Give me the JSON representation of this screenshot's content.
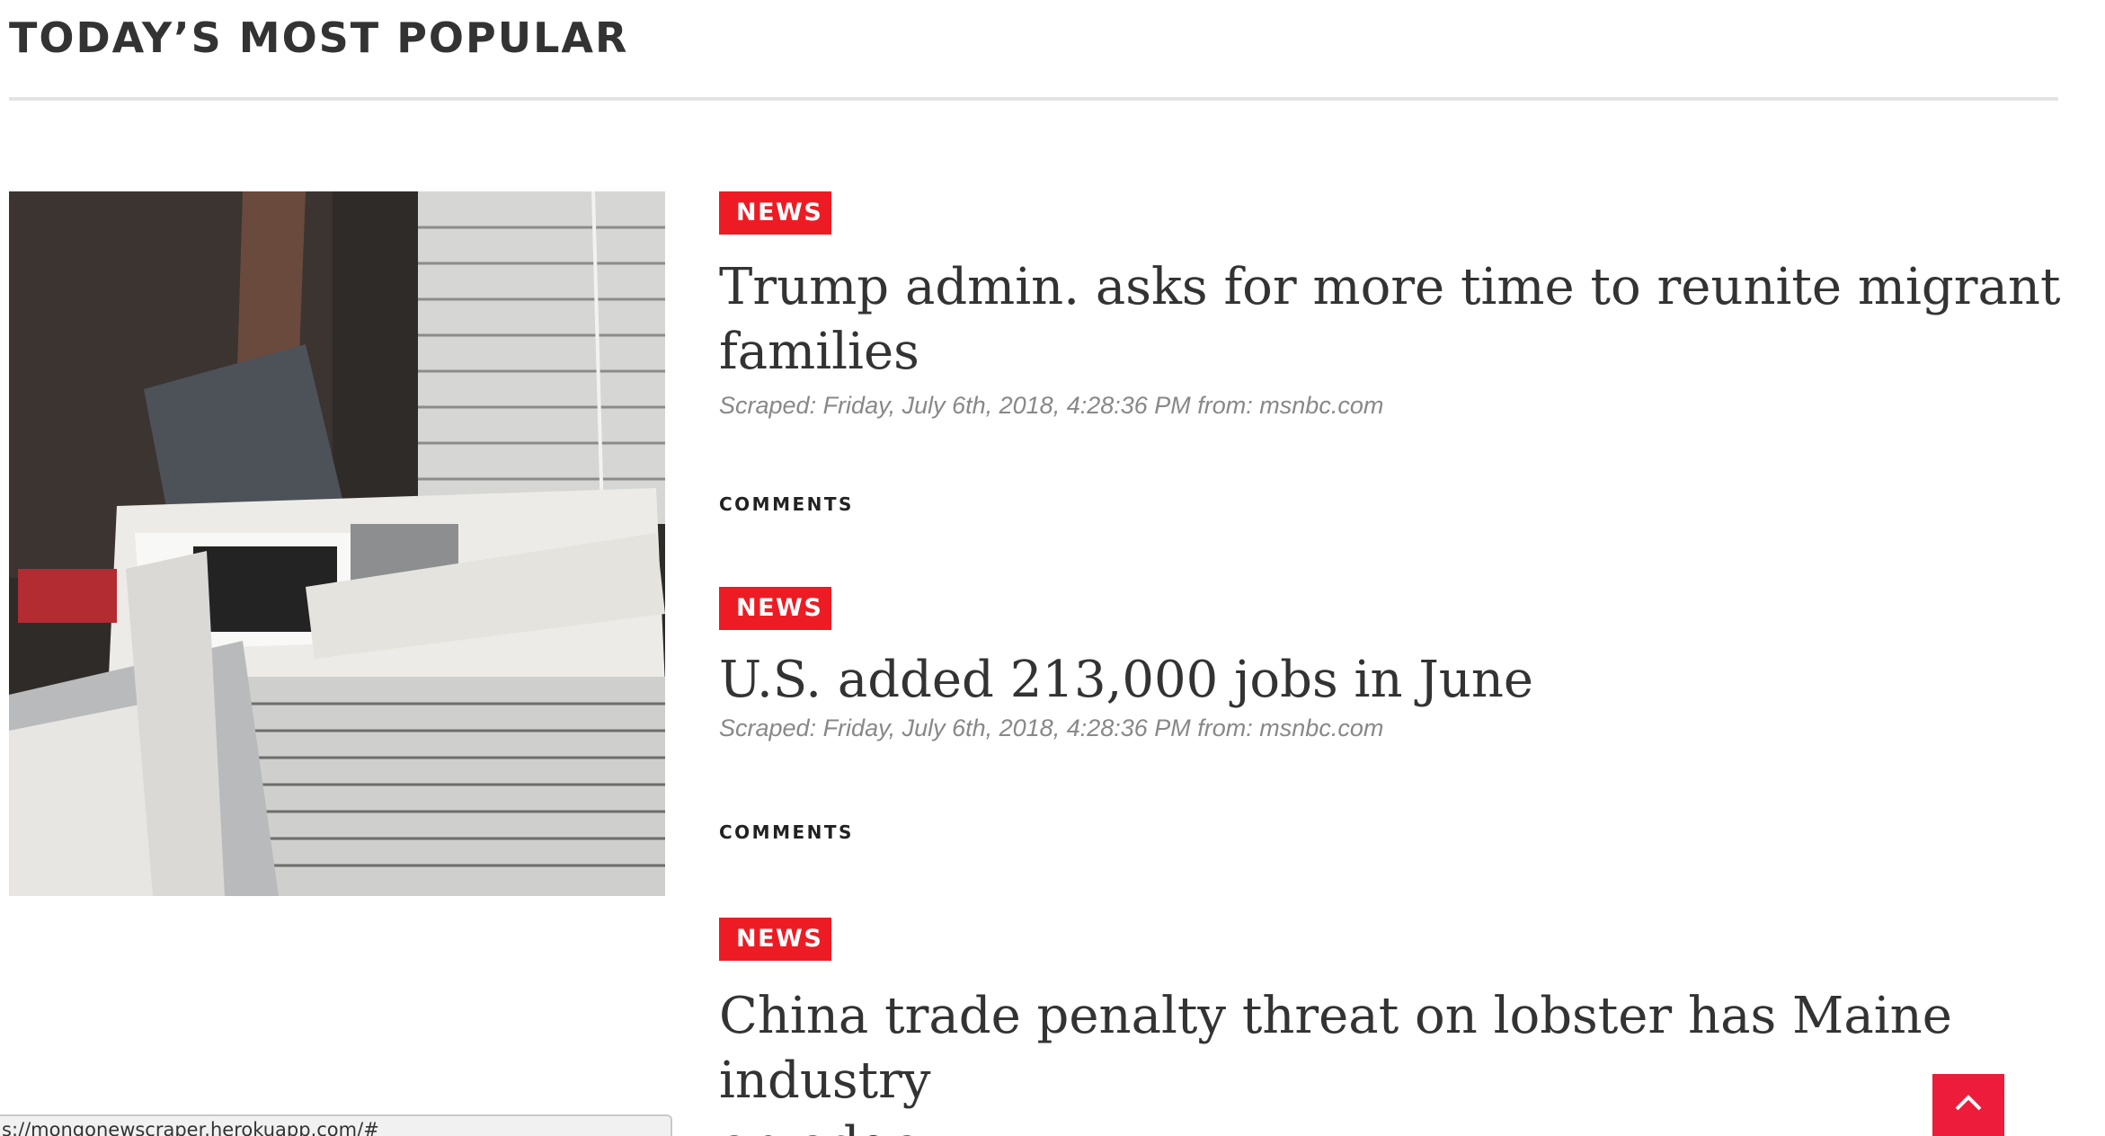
{
  "section": {
    "title": "TODAY’S MOST POPULAR"
  },
  "feature_image": {
    "alt": "Stacks of bundled newspapers"
  },
  "articles": [
    {
      "tag": "NEWS",
      "headline_line1": "Trump admin. asks for more time to reunite migrant",
      "headline_line2": "families",
      "meta": "Scraped: Friday, July 6th, 2018, 4:28:36 PM from: msnbc.com",
      "comments_label": "COMMENTS"
    },
    {
      "tag": "NEWS",
      "headline_line1": "U.S. added 213,000 jobs in June",
      "meta": "Scraped: Friday, July 6th, 2018, 4:28:36 PM from: msnbc.com",
      "comments_label": "COMMENTS"
    },
    {
      "tag": "NEWS",
      "headline_line1": "China trade penalty threat on lobster has Maine industry",
      "headline_line2": "on edge"
    }
  ],
  "status_bar": {
    "url": "s://mongonewscraper.herokuapp.com/#"
  },
  "colors": {
    "accent": "#ed1c24",
    "scroll_top": "#ed1c3a",
    "text": "#333333",
    "meta": "#888888"
  },
  "icons": {
    "scroll_top": "chevron-up-icon"
  }
}
